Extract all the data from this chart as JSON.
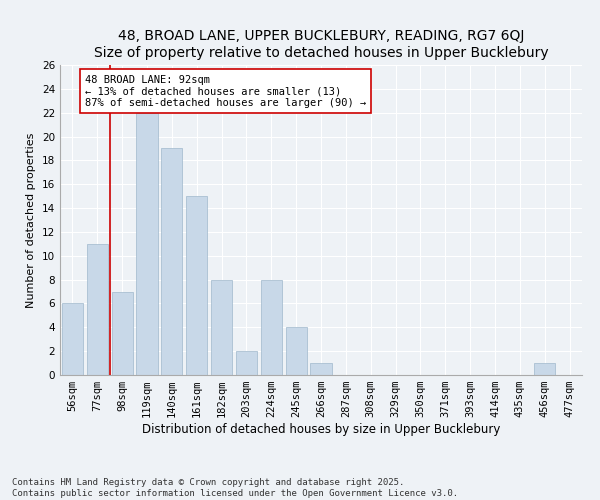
{
  "title1": "48, BROAD LANE, UPPER BUCKLEBURY, READING, RG7 6QJ",
  "title2": "Size of property relative to detached houses in Upper Bucklebury",
  "xlabel": "Distribution of detached houses by size in Upper Bucklebury",
  "ylabel": "Number of detached properties",
  "categories": [
    "56sqm",
    "77sqm",
    "98sqm",
    "119sqm",
    "140sqm",
    "161sqm",
    "182sqm",
    "203sqm",
    "224sqm",
    "245sqm",
    "266sqm",
    "287sqm",
    "308sqm",
    "329sqm",
    "350sqm",
    "371sqm",
    "393sqm",
    "414sqm",
    "435sqm",
    "456sqm",
    "477sqm"
  ],
  "values": [
    6,
    11,
    7,
    22,
    19,
    15,
    8,
    2,
    8,
    4,
    1,
    0,
    0,
    0,
    0,
    0,
    0,
    0,
    0,
    1,
    0
  ],
  "bar_color": "#c8d8e8",
  "bar_edgecolor": "#a0b8cc",
  "vline_x_index": 1.5,
  "vline_color": "#cc0000",
  "annotation_title": "48 BROAD LANE: 92sqm",
  "annotation_line2": "← 13% of detached houses are smaller (13)",
  "annotation_line3": "87% of semi-detached houses are larger (90) →",
  "annotation_box_edgecolor": "#cc0000",
  "ylim": [
    0,
    26
  ],
  "yticks": [
    0,
    2,
    4,
    6,
    8,
    10,
    12,
    14,
    16,
    18,
    20,
    22,
    24,
    26
  ],
  "footnote1": "Contains HM Land Registry data © Crown copyright and database right 2025.",
  "footnote2": "Contains public sector information licensed under the Open Government Licence v3.0.",
  "background_color": "#eef2f6",
  "plot_background": "#eef2f6",
  "grid_color": "#ffffff",
  "title_fontsize": 10,
  "ylabel_fontsize": 8,
  "xlabel_fontsize": 8.5,
  "tick_fontsize": 7.5,
  "ann_fontsize": 7.5,
  "footnote_fontsize": 6.5
}
